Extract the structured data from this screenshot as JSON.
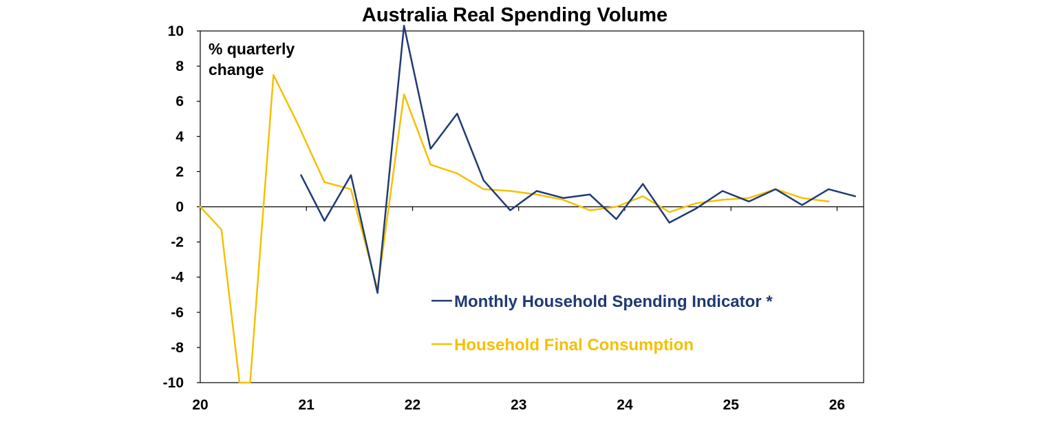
{
  "chart_data": {
    "type": "line",
    "title": "Australia Real Spending Volume",
    "ylabel_note": [
      "% quarterly",
      "change"
    ],
    "xlabel": "",
    "ylim": [
      -10,
      10
    ],
    "yticks": [
      10,
      8,
      6,
      4,
      2,
      0,
      -2,
      -4,
      -6,
      -8,
      -10
    ],
    "ytick_labels": [
      "10",
      "8",
      "6",
      "4",
      "2",
      "0",
      "-2",
      "-4",
      "-6",
      "-8",
      "-10"
    ],
    "x_range": [
      2020.0,
      2026.25
    ],
    "xticks": [
      2020,
      2021,
      2022,
      2023,
      2024,
      2025,
      2026
    ],
    "xtick_labels": [
      "20",
      "21",
      "22",
      "23",
      "24",
      "25",
      "26"
    ],
    "grid": false,
    "zero_line": true,
    "legend_position": "lower-right",
    "series": [
      {
        "name": "Monthly Household Spending Indicator *",
        "color": "#1f3a73",
        "x": [
          2020.95,
          2021.17,
          2021.42,
          2021.67,
          2021.92,
          2022.17,
          2022.42,
          2022.67,
          2022.92,
          2023.17,
          2023.42,
          2023.67,
          2023.92,
          2024.17,
          2024.42,
          2024.67,
          2024.92,
          2025.17,
          2025.42,
          2025.67,
          2025.92,
          2026.17
        ],
        "values": [
          1.8,
          -0.8,
          1.8,
          -4.9,
          10.3,
          3.3,
          5.3,
          1.5,
          -0.2,
          0.9,
          0.5,
          0.7,
          -0.7,
          1.3,
          -0.9,
          -0.1,
          0.9,
          0.3,
          1.0,
          0.1,
          1.0,
          0.6
        ]
      },
      {
        "name": "Household Final Consumption",
        "color": "#f5c000",
        "x": [
          2020.0,
          2020.2,
          2020.37,
          2020.47,
          2020.69,
          2020.92,
          2021.17,
          2021.42,
          2021.67,
          2021.92,
          2022.17,
          2022.42,
          2022.67,
          2022.92,
          2023.17,
          2023.42,
          2023.67,
          2023.92,
          2024.17,
          2024.42,
          2024.67,
          2024.92,
          2025.17,
          2025.42,
          2025.67,
          2025.92
        ],
        "values": [
          0.0,
          -1.3,
          -10.0,
          -10.0,
          7.5,
          4.7,
          1.4,
          1.0,
          -4.7,
          6.4,
          2.4,
          1.9,
          1.0,
          0.9,
          0.7,
          0.4,
          -0.2,
          0.0,
          0.6,
          -0.3,
          0.2,
          0.4,
          0.5,
          1.0,
          0.5,
          0.3
        ]
      }
    ]
  }
}
